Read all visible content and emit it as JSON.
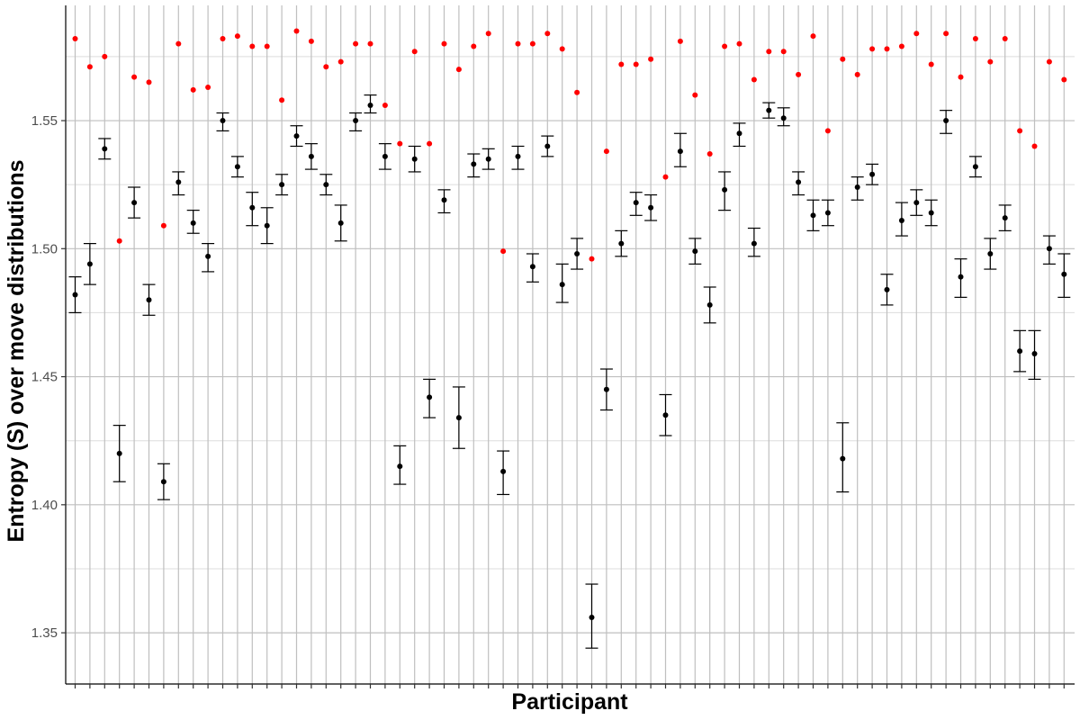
{
  "chart_data": {
    "type": "scatter",
    "title": "",
    "xlabel": "Participant",
    "ylabel": "Entropy (S) over move distributions",
    "ylim": [
      1.33,
      1.595
    ],
    "yticks": [
      1.35,
      1.4,
      1.45,
      1.5,
      1.55
    ],
    "ytick_labels": [
      "1.35",
      "1.40",
      "1.45",
      "1.50",
      "1.55"
    ],
    "grid": true,
    "legend": "none",
    "colors": {
      "observed": "#ff0000",
      "estimate": "#000000",
      "grid_major": "#bfbfbf",
      "grid_minor": "#dddddd"
    },
    "series": [
      {
        "kind": "point",
        "values": [
          1.582,
          1.571,
          1.575,
          1.503,
          1.567,
          1.565,
          1.509,
          1.58,
          1.562,
          1.563,
          1.582,
          1.583,
          1.579,
          1.579,
          1.558,
          1.585,
          1.581,
          1.571,
          1.573,
          1.58,
          1.58,
          1.556,
          1.541,
          1.577,
          1.541,
          1.58,
          1.57,
          1.579,
          1.584,
          1.499,
          1.58,
          1.58,
          1.584,
          1.578,
          1.561,
          1.496,
          1.538,
          1.572,
          1.572,
          1.574,
          1.528,
          1.581,
          1.56,
          1.537,
          1.579,
          1.58,
          1.566,
          1.577,
          1.577,
          1.568,
          1.583,
          1.546,
          1.574,
          1.568,
          1.578,
          1.578,
          1.579,
          1.584,
          1.572,
          1.584,
          1.567,
          1.582,
          1.573,
          1.582,
          1.546,
          1.54,
          1.573,
          1.566
        ]
      },
      {
        "kind": "point-with-errorbar",
        "values": [
          1.482,
          1.494,
          1.539,
          1.42,
          1.518,
          1.48,
          1.409,
          1.526,
          1.51,
          1.497,
          1.55,
          1.532,
          1.516,
          1.509,
          1.525,
          1.544,
          1.536,
          1.525,
          1.51,
          1.55,
          1.556,
          1.536,
          1.415,
          1.535,
          1.442,
          1.519,
          1.434,
          1.533,
          1.535,
          1.413,
          1.536,
          1.493,
          1.54,
          1.486,
          1.498,
          1.356,
          1.445,
          1.502,
          1.518,
          1.516,
          1.435,
          1.538,
          1.499,
          1.478,
          1.523,
          1.545,
          1.502,
          1.554,
          1.551,
          1.526,
          1.513,
          1.514,
          1.418,
          1.524,
          1.529,
          1.484,
          1.511,
          1.518,
          1.514,
          1.55,
          1.489,
          1.532,
          1.498,
          1.512,
          1.46,
          1.459,
          1.5,
          1.49
        ],
        "lower": [
          1.475,
          1.486,
          1.535,
          1.409,
          1.512,
          1.474,
          1.402,
          1.521,
          1.506,
          1.491,
          1.546,
          1.528,
          1.509,
          1.502,
          1.521,
          1.54,
          1.531,
          1.521,
          1.503,
          1.546,
          1.553,
          1.531,
          1.408,
          1.53,
          1.434,
          1.514,
          1.422,
          1.528,
          1.531,
          1.404,
          1.531,
          1.487,
          1.536,
          1.479,
          1.492,
          1.344,
          1.437,
          1.497,
          1.513,
          1.511,
          1.427,
          1.532,
          1.494,
          1.471,
          1.515,
          1.54,
          1.497,
          1.551,
          1.548,
          1.521,
          1.507,
          1.509,
          1.405,
          1.519,
          1.525,
          1.478,
          1.505,
          1.513,
          1.509,
          1.545,
          1.481,
          1.528,
          1.492,
          1.507,
          1.452,
          1.449,
          1.494,
          1.481
        ],
        "upper": [
          1.489,
          1.502,
          1.543,
          1.431,
          1.524,
          1.486,
          1.416,
          1.53,
          1.515,
          1.502,
          1.553,
          1.536,
          1.522,
          1.516,
          1.529,
          1.548,
          1.541,
          1.529,
          1.517,
          1.553,
          1.56,
          1.541,
          1.423,
          1.54,
          1.449,
          1.523,
          1.446,
          1.537,
          1.539,
          1.421,
          1.54,
          1.498,
          1.544,
          1.494,
          1.504,
          1.369,
          1.453,
          1.507,
          1.522,
          1.521,
          1.443,
          1.545,
          1.504,
          1.485,
          1.53,
          1.549,
          1.508,
          1.557,
          1.555,
          1.53,
          1.519,
          1.519,
          1.432,
          1.528,
          1.533,
          1.49,
          1.518,
          1.523,
          1.519,
          1.554,
          1.496,
          1.536,
          1.504,
          1.517,
          1.468,
          1.468,
          1.505,
          1.498
        ]
      }
    ]
  }
}
